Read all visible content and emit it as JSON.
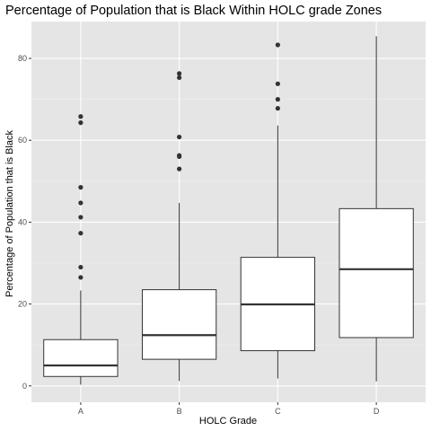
{
  "chart_data": {
    "type": "boxplot",
    "title": "Percentage of Population that is Black Within HOLC grade Zones",
    "xlabel": "HOLC Grade",
    "ylabel": "Percentage of Population that is Black",
    "categories": [
      "A",
      "B",
      "C",
      "D"
    ],
    "y_ticks": [
      0,
      20,
      40,
      60,
      80
    ],
    "ylim": [
      -4,
      89
    ],
    "grid": true,
    "legend": "none",
    "boxes": [
      {
        "category": "A",
        "min": 0.3,
        "q1": 2.3,
        "median": 5.0,
        "q3": 11.3,
        "max": 23.3,
        "outliers": [
          26.5,
          29.0,
          37.3,
          41.2,
          44.7,
          48.5,
          64.3,
          65.8
        ]
      },
      {
        "category": "B",
        "min": 1.2,
        "q1": 6.5,
        "median": 12.4,
        "q3": 23.5,
        "max": 44.7,
        "outliers": [
          53.0,
          56.0,
          56.3,
          60.8,
          75.3,
          76.3
        ]
      },
      {
        "category": "C",
        "min": 1.8,
        "q1": 8.6,
        "median": 19.9,
        "q3": 31.4,
        "max": 63.6,
        "outliers": [
          67.8,
          70.0,
          73.8,
          83.3
        ]
      },
      {
        "category": "D",
        "min": 1.1,
        "q1": 11.8,
        "median": 28.5,
        "q3": 43.3,
        "max": 85.4,
        "outliers": []
      }
    ],
    "colors": {
      "panel": "#e5e5e5",
      "grid_major": "#ffffff",
      "grid_minor": "#f2f2f2",
      "box_fill": "#ffffff",
      "box_line": "#333333"
    }
  }
}
